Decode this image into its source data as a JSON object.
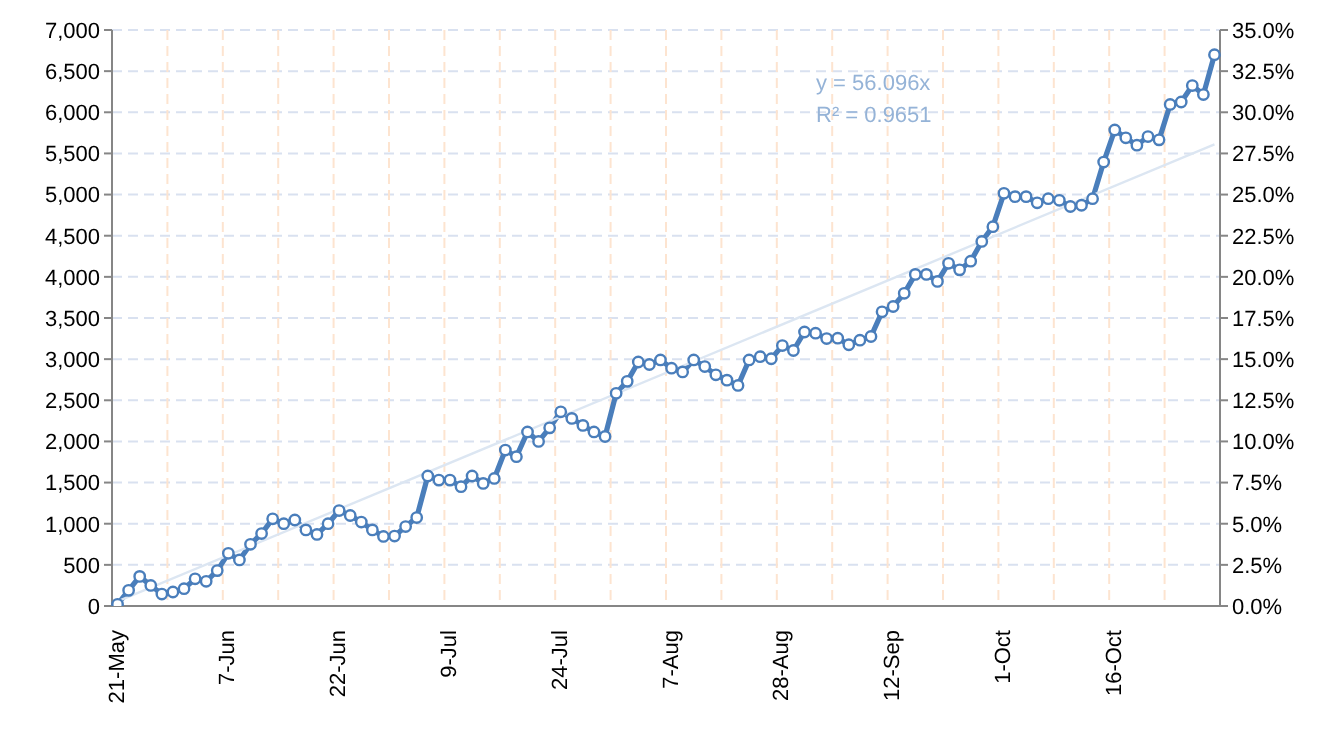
{
  "chart_data": {
    "type": "line",
    "categories": [
      "21-May",
      null,
      null,
      null,
      null,
      null,
      null,
      null,
      null,
      null,
      "7-Jun",
      null,
      null,
      null,
      null,
      null,
      null,
      null,
      null,
      null,
      "22-Jun",
      null,
      null,
      null,
      null,
      null,
      null,
      null,
      null,
      null,
      "9-Jul",
      null,
      null,
      null,
      null,
      null,
      null,
      null,
      null,
      null,
      "24-Jul",
      null,
      null,
      null,
      null,
      null,
      null,
      null,
      null,
      null,
      "7-Aug",
      null,
      null,
      null,
      null,
      null,
      null,
      null,
      null,
      null,
      "28-Aug",
      null,
      null,
      null,
      null,
      null,
      null,
      null,
      null,
      null,
      "12-Sep",
      null,
      null,
      null,
      null,
      null,
      null,
      null,
      null,
      null,
      "1-Oct",
      null,
      null,
      null,
      null,
      null,
      null,
      null,
      null,
      null,
      "16-Oct",
      null,
      null,
      null,
      null,
      null,
      null,
      null,
      null,
      null
    ],
    "series": [
      {
        "color": "#4a7ebb",
        "values": [
          20,
          190,
          360,
          250,
          145,
          170,
          210,
          330,
          300,
          430,
          640,
          560,
          750,
          880,
          1060,
          1000,
          1045,
          925,
          870,
          1000,
          1160,
          1100,
          1020,
          925,
          845,
          850,
          965,
          1075,
          1580,
          1530,
          1530,
          1450,
          1580,
          1490,
          1550,
          1895,
          1815,
          2115,
          2000,
          2165,
          2360,
          2280,
          2195,
          2115,
          2060,
          2585,
          2730,
          2965,
          2935,
          2990,
          2890,
          2845,
          2990,
          2910,
          2810,
          2745,
          2680,
          2990,
          3030,
          3005,
          3165,
          3105,
          3330,
          3315,
          3250,
          3255,
          3175,
          3230,
          3275,
          3575,
          3640,
          3800,
          4030,
          4030,
          3945,
          4165,
          4085,
          4190,
          4430,
          4610,
          5015,
          4975,
          4975,
          4900,
          4950,
          4930,
          4855,
          4870,
          4950,
          5395,
          5785,
          5690,
          5600,
          5705,
          5665,
          6095,
          6125,
          6325,
          6215,
          6700
        ]
      },
      {
        "type": "line",
        "color": "#dce6f2",
        "marker": "none",
        "values": [
          56,
          null,
          null,
          null,
          null,
          null,
          null,
          null,
          null,
          null,
          null,
          null,
          null,
          null,
          null,
          null,
          null,
          null,
          null,
          null,
          null,
          null,
          null,
          null,
          null,
          null,
          null,
          null,
          null,
          null,
          null,
          null,
          null,
          null,
          null,
          null,
          null,
          null,
          null,
          null,
          null,
          null,
          null,
          null,
          null,
          null,
          null,
          null,
          null,
          null,
          null,
          null,
          null,
          null,
          null,
          null,
          null,
          null,
          null,
          null,
          null,
          null,
          null,
          null,
          null,
          null,
          null,
          null,
          null,
          null,
          null,
          null,
          null,
          null,
          null,
          null,
          null,
          null,
          null,
          null,
          null,
          null,
          null,
          null,
          null,
          null,
          null,
          null,
          null,
          null,
          null,
          null,
          null,
          null,
          null,
          null,
          null,
          null,
          null,
          5610
        ]
      }
    ],
    "ylim": [
      0,
      7000
    ],
    "yticks": [
      0,
      {
        "value": 500,
        "label": "500"
      },
      {
        "value": 1000,
        "label": "1,000"
      },
      {
        "value": 1500,
        "label": "1,500"
      },
      {
        "value": 2000,
        "label": "2,000"
      },
      {
        "value": 2500,
        "label": "2,500"
      },
      {
        "value": 3000,
        "label": "3,000"
      },
      {
        "value": 3500,
        "label": "3,500"
      },
      {
        "value": 4000,
        "label": "4,000"
      },
      {
        "value": 4500,
        "label": "4,500"
      },
      {
        "value": 5000,
        "label": "5,000"
      },
      {
        "value": 5500,
        "label": "5,500"
      },
      {
        "value": 6000,
        "label": "6,000"
      },
      {
        "value": 6500,
        "label": "6,500"
      },
      {
        "value": 7000,
        "label": "7,000"
      }
    ],
    "y2lim": [
      0,
      35
    ],
    "y2ticks": [
      {
        "value": 0,
        "label": "0.0%"
      },
      {
        "value": 2.5,
        "label": "2.5%"
      },
      {
        "value": 5,
        "label": "5.0%"
      },
      {
        "value": 7.5,
        "label": "7.5%"
      },
      {
        "value": 10,
        "label": "10.0%"
      },
      {
        "value": 12.5,
        "label": "12.5%"
      },
      {
        "value": 15,
        "label": "15.0%"
      },
      {
        "value": 17.5,
        "label": "17.5%"
      },
      {
        "value": 20,
        "label": "20.0%"
      },
      {
        "value": 22.5,
        "label": "22.5%"
      },
      {
        "value": 25,
        "label": "25.0%"
      },
      {
        "value": 27.5,
        "label": "27.5%"
      },
      {
        "value": 30,
        "label": "30.0%"
      },
      {
        "value": 32.5,
        "label": "32.5%"
      },
      {
        "value": 35,
        "label": "35.0%"
      }
    ],
    "annotations": [
      "y = 56.096x",
      "R² = 0.9651"
    ],
    "grid": true,
    "marker": "circle",
    "line_style": "solid"
  }
}
